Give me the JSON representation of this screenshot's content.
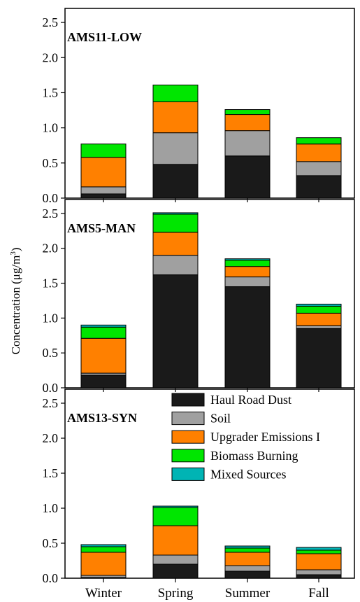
{
  "chart_data": {
    "type": "bar",
    "stacked": true,
    "ylabel": "Concentration (μg/m",
    "ylabel_superscript": "3",
    "ylabel_close": ")",
    "categories": [
      "Winter",
      "Spring",
      "Summer",
      "Fall"
    ],
    "ylim": [
      0,
      2.7
    ],
    "yticks": [
      "0.0",
      "0.5",
      "1.0",
      "1.5",
      "2.0",
      "2.5"
    ],
    "legend": {
      "placement": "inside-bottom-panel-right",
      "entries": [
        {
          "name": "Haul Road Dust",
          "color": "#1a1a1a"
        },
        {
          "name": "Soil",
          "color": "#a0a0a0"
        },
        {
          "name": "Upgrader Emissions I",
          "color": "#ff8000"
        },
        {
          "name": "Biomass Burning",
          "color": "#00e600"
        },
        {
          "name": "Mixed Sources",
          "color": "#00b4b4"
        }
      ]
    },
    "panels": [
      {
        "label": "AMS11-LOW",
        "series": [
          {
            "name": "Haul Road Dust",
            "values": [
              0.06,
              0.48,
              0.6,
              0.32
            ]
          },
          {
            "name": "Soil",
            "values": [
              0.1,
              0.45,
              0.36,
              0.2
            ]
          },
          {
            "name": "Upgrader Emissions I",
            "values": [
              0.42,
              0.44,
              0.23,
              0.25
            ]
          },
          {
            "name": "Biomass Burning",
            "values": [
              0.19,
              0.24,
              0.07,
              0.09
            ]
          },
          {
            "name": "Mixed Sources",
            "values": [
              0.0,
              0.0,
              0.0,
              0.0
            ]
          }
        ]
      },
      {
        "label": "AMS5-MAN",
        "series": [
          {
            "name": "Haul Road Dust",
            "values": [
              0.18,
              1.62,
              1.45,
              0.85
            ]
          },
          {
            "name": "Soil",
            "values": [
              0.03,
              0.28,
              0.14,
              0.04
            ]
          },
          {
            "name": "Upgrader Emissions I",
            "values": [
              0.5,
              0.33,
              0.15,
              0.18
            ]
          },
          {
            "name": "Biomass Burning",
            "values": [
              0.16,
              0.26,
              0.09,
              0.1
            ]
          },
          {
            "name": "Mixed Sources",
            "values": [
              0.03,
              0.02,
              0.02,
              0.03
            ]
          }
        ]
      },
      {
        "label": "AMS13-SYN",
        "series": [
          {
            "name": "Haul Road Dust",
            "values": [
              0.01,
              0.2,
              0.1,
              0.05
            ]
          },
          {
            "name": "Soil",
            "values": [
              0.03,
              0.13,
              0.08,
              0.07
            ]
          },
          {
            "name": "Upgrader Emissions I",
            "values": [
              0.33,
              0.42,
              0.19,
              0.23
            ]
          },
          {
            "name": "Biomass Burning",
            "values": [
              0.08,
              0.26,
              0.06,
              0.05
            ]
          },
          {
            "name": "Mixed Sources",
            "values": [
              0.03,
              0.02,
              0.03,
              0.04
            ]
          }
        ]
      }
    ]
  }
}
